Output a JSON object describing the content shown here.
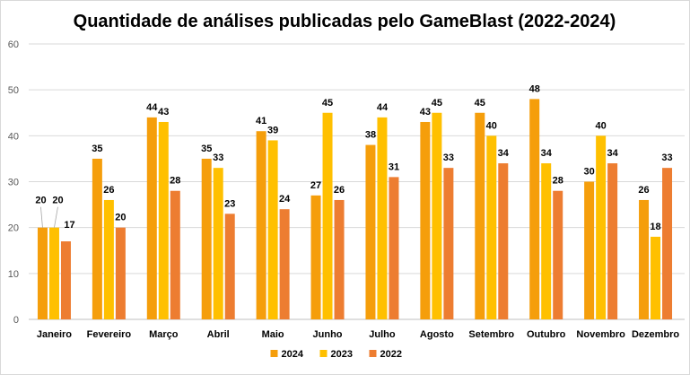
{
  "chart_data": {
    "type": "bar",
    "title": "Quantidade de análises publicadas pelo GameBlast (2022-2024)",
    "xlabel": "",
    "ylabel": "",
    "ylim": [
      0,
      60
    ],
    "yticks": [
      0,
      10,
      20,
      30,
      40,
      50,
      60
    ],
    "grid": true,
    "legend_position": "bottom",
    "categories": [
      "Janeiro",
      "Fevereiro",
      "Março",
      "Abril",
      "Maio",
      "Junho",
      "Julho",
      "Agosto",
      "Setembro",
      "Outubro",
      "Novembro",
      "Dezembro"
    ],
    "series": [
      {
        "name": "2024",
        "color": "#F59E0B",
        "values": [
          20,
          35,
          44,
          35,
          41,
          27,
          38,
          43,
          45,
          48,
          30,
          26
        ]
      },
      {
        "name": "2023",
        "color": "#FFC000",
        "values": [
          20,
          26,
          43,
          33,
          39,
          45,
          44,
          45,
          40,
          34,
          40,
          18
        ]
      },
      {
        "name": "2022",
        "color": "#ED7D31",
        "values": [
          17,
          20,
          28,
          23,
          24,
          26,
          31,
          33,
          34,
          28,
          34,
          33
        ]
      }
    ]
  }
}
